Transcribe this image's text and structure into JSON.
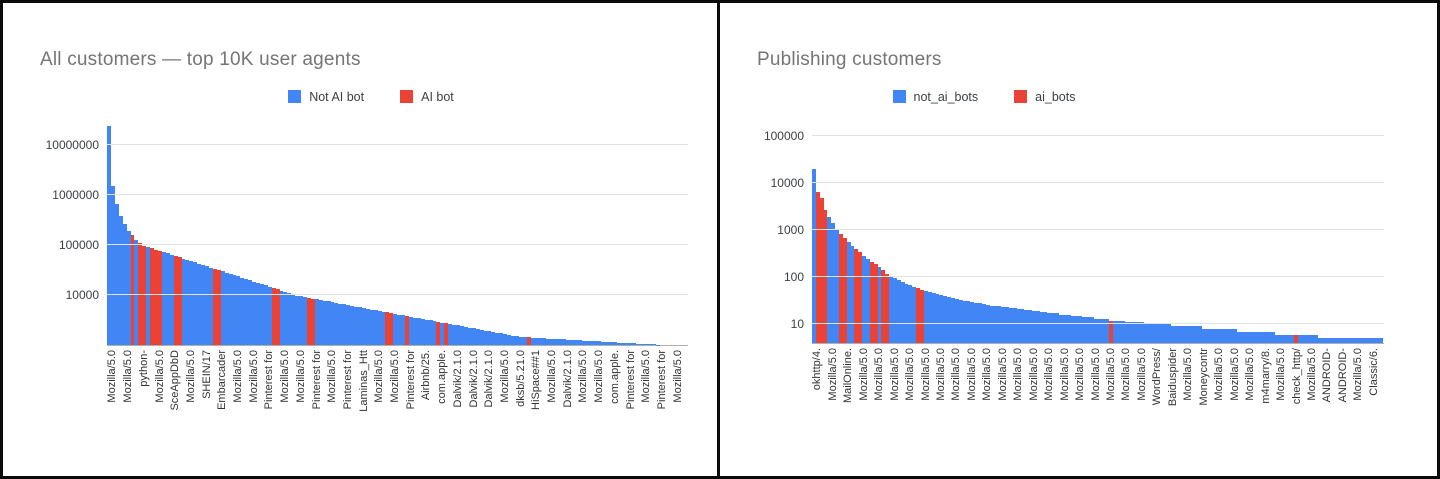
{
  "panels": [
    {
      "title": "All customers — top 10K user agents",
      "legend": [
        {
          "label": "Not AI bot",
          "color": "#4285f4"
        },
        {
          "label": "AI bot",
          "color": "#ea4335"
        }
      ]
    },
    {
      "title": "Publishing customers",
      "legend": [
        {
          "label": "not_ai_bots",
          "color": "#4285f4"
        },
        {
          "label": "ai_bots",
          "color": "#ea4335"
        }
      ]
    }
  ],
  "chart_data": [
    {
      "type": "bar",
      "title": "All customers — top 10K user agents",
      "y_scale": "log",
      "grid": true,
      "legend_position": "top",
      "y_ticks": [
        10000000,
        1000000,
        100000,
        10000
      ],
      "y_tick_labels": [
        "10000000",
        "1000000",
        "100000",
        "10000"
      ],
      "baseline_value": 1000,
      "series": [
        {
          "name": "Not AI bot",
          "color": "#4285f4"
        },
        {
          "name": "AI bot",
          "color": "#ea4335"
        }
      ],
      "categories": [
        "Mozilla/5.0",
        "Mozilla/5.0",
        "python-",
        "Mozilla/5.0",
        "SceAppDbD",
        "Mozilla/5.0",
        "SHEIN/17",
        "Embarcader",
        "Mozilla/5.0",
        "Mozilla/5.0",
        "Pinterest for",
        "Mozilla/5.0",
        "Mozilla/5.0",
        "Pinterest for",
        "Mozilla/5.0",
        "Pinterest for",
        "Laminas_Htt",
        "Mozilla/5.0",
        "Mozilla/5.0",
        "Pinterest for",
        "Airbnb/25.",
        "com.apple.",
        "Dalvik/2.1.0",
        "Dalvik/2.1.0",
        "Dalvik/2.1.0",
        "Mozilla/5.0",
        "dksb/5.21.0",
        "HiSpace##1",
        "Mozilla/5.0",
        "Dalvik/2.1.0",
        "Mozilla/5.0",
        "Mozilla/5.0",
        "com.apple.",
        "Pinterest for",
        "Mozilla/5.0",
        "Pinterest for",
        "Mozilla/5.0"
      ],
      "label_bar_start": 1,
      "label_bar_step": 4,
      "values": [
        24000000,
        1500000,
        650000,
        380000,
        260000,
        195000,
        155000,
        128000,
        110000,
        97000,
        91000,
        86000,
        81000,
        76500,
        72000,
        68000,
        64000,
        60500,
        57000,
        53700,
        50600,
        47700,
        45000,
        42400,
        40000,
        37700,
        35500,
        33500,
        31600,
        29800,
        28000,
        26400,
        24900,
        23500,
        22100,
        20900,
        19700,
        18500,
        17500,
        16500,
        15500,
        14600,
        13800,
        13000,
        12300,
        11600,
        10900,
        10300,
        9700,
        9380,
        9070,
        8770,
        8480,
        8200,
        7930,
        7670,
        7420,
        7170,
        6930,
        6700,
        6480,
        6270,
        6060,
        5860,
        5670,
        5480,
        5300,
        5130,
        4960,
        4790,
        4630,
        4480,
        4330,
        4190,
        4050,
        3920,
        3790,
        3670,
        3550,
        3430,
        3320,
        3210,
        3100,
        3000,
        2900,
        2810,
        2720,
        2630,
        2540,
        2460,
        2380,
        2300,
        2220,
        2150,
        2080,
        2010,
        1940,
        1880,
        1820,
        1760,
        1700,
        1650,
        1590,
        1540,
        1490,
        1440,
        1430,
        1415,
        1400,
        1385,
        1370,
        1360,
        1345,
        1330,
        1320,
        1305,
        1290,
        1280,
        1265,
        1250,
        1240,
        1230,
        1215,
        1200,
        1190,
        1180,
        1165,
        1155,
        1145,
        1130,
        1120,
        1110,
        1100,
        1090,
        1075,
        1065,
        1055,
        1045,
        1035,
        1025,
        1010,
        1000,
        990,
        980,
        970,
        960,
        950,
        940
      ],
      "ai_indices": [
        6,
        8,
        9,
        11,
        12,
        13,
        17,
        18,
        27,
        28,
        42,
        43,
        51,
        52,
        71,
        72,
        76,
        84,
        86,
        107
      ]
    },
    {
      "type": "bar",
      "title": "Publishing customers",
      "y_scale": "log",
      "grid": true,
      "legend_position": "top",
      "y_ticks": [
        100000,
        10000,
        1000,
        100,
        10
      ],
      "y_tick_labels": [
        "100000",
        "10000",
        "1000",
        "100",
        "10"
      ],
      "baseline_value": 4,
      "series": [
        {
          "name": "not_ai_bots",
          "color": "#4285f4"
        },
        {
          "name": "ai_bots",
          "color": "#ea4335"
        }
      ],
      "categories": [
        "okhttp/4.",
        "Mozilla/5.0",
        "MailOnline.",
        "Mozilla/5.0",
        "Mozilla/5.0",
        "Mozilla/5.0",
        "Mozilla/5.0",
        "Mozilla/5.0",
        "Mozilla/5.0",
        "Mozilla/5.0",
        "Mozilla/5.0",
        "Mozilla/5.0",
        "Mozilla/5.0",
        "Mozilla/5.0",
        "Mozilla/5.0",
        "Mozilla/5.0",
        "Mozilla/5.0",
        "Mozilla/5.0",
        "Mozilla/5.0",
        "Mozilla/5.0",
        "Mozilla/5.0",
        "Mozilla/5.0",
        "WordPress/",
        "Baiduspider",
        "Mozilla/5.0",
        "Moneycontr",
        "Mozilla/5.0",
        "Mozilla/5.0",
        "Mozilla/5.0",
        "m4marry/8.",
        "Mozilla/5.0",
        "check_http/",
        "Mozilla/5.0",
        "ANDROID-",
        "ANDROID-",
        "Mozilla/5.0",
        "Classic/6."
      ],
      "label_bar_start": 1,
      "label_bar_step": 4,
      "values": [
        20000,
        6500,
        4800,
        2700,
        1900,
        1400,
        1050,
        850,
        680,
        560,
        470,
        400,
        340,
        290,
        250,
        215,
        190,
        165,
        140,
        120,
        105,
        95,
        86,
        79,
        73,
        68,
        63,
        59,
        55,
        52,
        49,
        46,
        44,
        42,
        40,
        38,
        36,
        35,
        33,
        32,
        31,
        30,
        29,
        28,
        27,
        26,
        25,
        25,
        24,
        23,
        23,
        22,
        22,
        21,
        21,
        20,
        20,
        19,
        19,
        18,
        18,
        17,
        17,
        17,
        16,
        16,
        16,
        15,
        15,
        15,
        14,
        14,
        14,
        13,
        13,
        13,
        13,
        12,
        12,
        12,
        12,
        11,
        11,
        11,
        11,
        11,
        10,
        10,
        10,
        10,
        10,
        10,
        10,
        9,
        9,
        9,
        9,
        9,
        9,
        9,
        9,
        8,
        8,
        8,
        8,
        8,
        8,
        8,
        8,
        8,
        7,
        7,
        7,
        7,
        7,
        7,
        7,
        7,
        7,
        7,
        6,
        6,
        6,
        6,
        6,
        6,
        6,
        6,
        6,
        6,
        6,
        5,
        5,
        5,
        5,
        5,
        5,
        5,
        5,
        5,
        5,
        5,
        5,
        5,
        5,
        5,
        5,
        5
      ],
      "ai_indices": [
        1,
        2,
        3,
        7,
        8,
        11,
        12,
        15,
        16,
        18,
        19,
        27,
        28,
        77,
        125
      ]
    }
  ]
}
